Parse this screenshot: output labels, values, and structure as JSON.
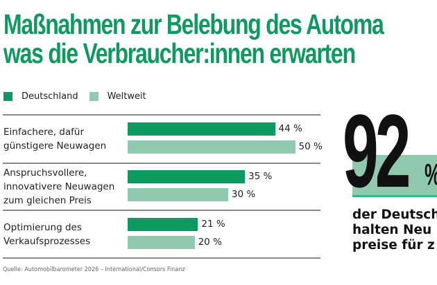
{
  "title_lines": [
    "Maßnahmen zur Belebung des Automa",
    "was die Verbraucher:innen erwarten"
  ],
  "colors": {
    "title": "#0d9960",
    "deutschland": "#0d9960",
    "weltweit": "#8fcaae",
    "divider": "#8a8a8a",
    "highlight_box": "#8fcaae"
  },
  "chart_data": {
    "type": "bar",
    "orientation": "horizontal",
    "title": "Maßnahmen zur Belebung des Automa… was die Verbraucher:innen erwarten",
    "xlabel": "",
    "ylabel": "",
    "xlim": [
      0,
      50
    ],
    "grid": false,
    "legend_position": "top-left",
    "categories": [
      [
        "Einfachere, dafür",
        "günstigere Neuwagen"
      ],
      [
        "Anspruchsvollere,",
        "innovativere Neuwagen",
        "zum gleichen Preis"
      ],
      [
        "Optimierung des",
        "Verkaufsprozesses"
      ]
    ],
    "series": [
      {
        "name": "Deutschland",
        "values": [
          44,
          35,
          21
        ],
        "labels": [
          "44 %",
          "35 %",
          "21 %"
        ]
      },
      {
        "name": "Weltweit",
        "values": [
          50,
          30,
          20
        ],
        "labels": [
          "50 %",
          "30 %",
          "20 %"
        ]
      }
    ]
  },
  "legend": {
    "items": [
      "Deutschland",
      "Weltweit"
    ]
  },
  "highlight": {
    "number": "92",
    "unit": "%",
    "text_lines": [
      "der Deutsch",
      "halten Neu",
      "preise für z"
    ]
  },
  "source": "Quelle: Automobilbarometer 2026 – International/Consors Finanz"
}
